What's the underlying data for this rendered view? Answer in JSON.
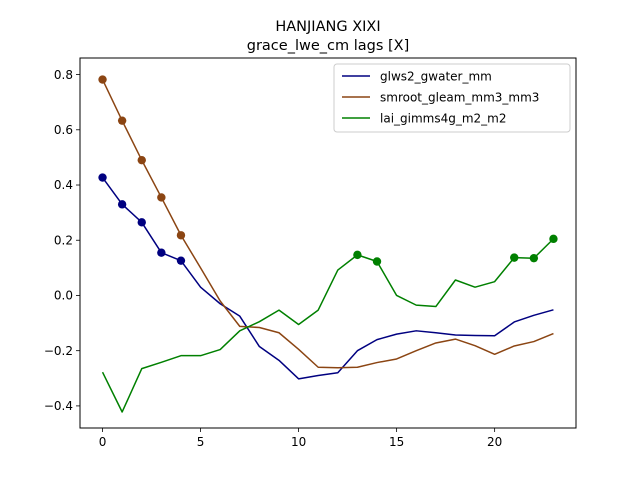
{
  "chart_data": {
    "type": "line",
    "title": "HANJIANG XIXI",
    "subtitle": "grace_lwe_cm lags [X]",
    "xlabel": "",
    "ylabel": "",
    "xlim": [
      -1.15,
      24.15
    ],
    "ylim": [
      -0.48,
      0.86
    ],
    "xticks": [
      0,
      5,
      10,
      15,
      20
    ],
    "yticks": [
      -0.4,
      -0.2,
      0.0,
      0.2,
      0.4,
      0.6,
      0.8
    ],
    "xtick_labels": [
      "0",
      "5",
      "10",
      "15",
      "20"
    ],
    "ytick_labels": [
      "−0.4",
      "−0.2",
      "0.0",
      "0.2",
      "0.4",
      "0.6",
      "0.8"
    ],
    "grid": false,
    "legend_position": "top-right",
    "x": [
      0,
      1,
      2,
      3,
      4,
      5,
      6,
      7,
      8,
      9,
      10,
      11,
      12,
      13,
      14,
      15,
      16,
      17,
      18,
      19,
      20,
      21,
      22,
      23
    ],
    "series": [
      {
        "name": "glws2_gwater_mm",
        "color": "#000080",
        "values": [
          0.427,
          0.33,
          0.265,
          0.155,
          0.126,
          0.03,
          -0.03,
          -0.075,
          -0.185,
          -0.235,
          -0.302,
          -0.29,
          -0.28,
          -0.2,
          -0.16,
          -0.14,
          -0.128,
          -0.135,
          -0.143,
          -0.145,
          -0.146,
          -0.096,
          -0.072,
          -0.052
        ],
        "markers": [
          0,
          1,
          2,
          3,
          4
        ]
      },
      {
        "name": "smroot_gleam_mm3_mm3",
        "color": "#8B4513",
        "values": [
          0.782,
          0.633,
          0.49,
          0.355,
          0.218,
          0.1,
          -0.02,
          -0.112,
          -0.116,
          -0.135,
          -0.195,
          -0.26,
          -0.262,
          -0.26,
          -0.243,
          -0.23,
          -0.2,
          -0.172,
          -0.158,
          -0.182,
          -0.213,
          -0.183,
          -0.167,
          -0.138
        ],
        "markers": [
          0,
          1,
          2,
          3,
          4
        ]
      },
      {
        "name": "lai_gimms4g_m2_m2",
        "color": "#008000",
        "values": [
          -0.278,
          -0.422,
          -0.265,
          -0.242,
          -0.218,
          -0.218,
          -0.196,
          -0.128,
          -0.095,
          -0.053,
          -0.105,
          -0.053,
          0.092,
          0.147,
          0.123,
          0.0,
          -0.035,
          -0.04,
          0.056,
          0.03,
          0.05,
          0.137,
          0.135,
          0.205
        ],
        "markers": [
          13,
          14,
          21,
          22,
          23
        ]
      }
    ]
  }
}
